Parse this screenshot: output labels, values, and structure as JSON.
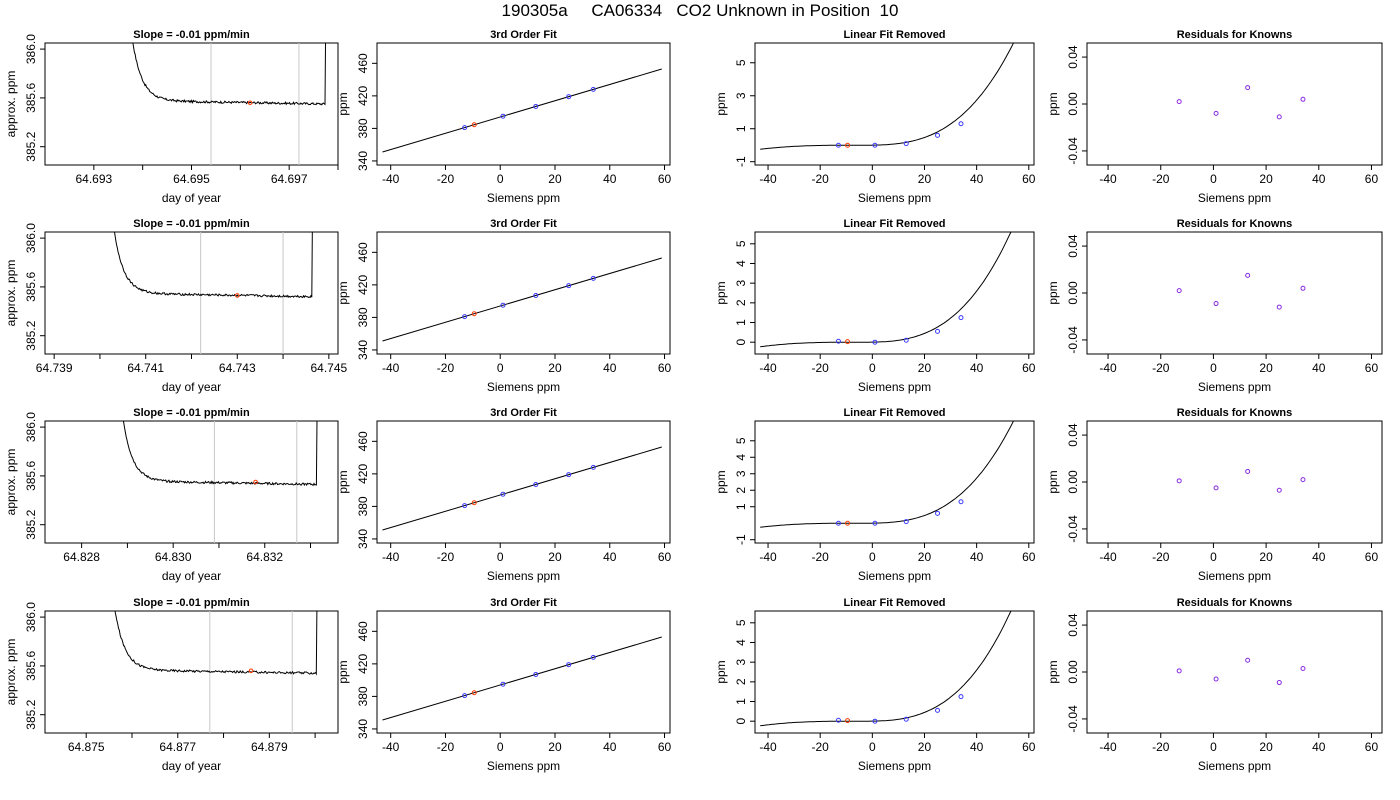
{
  "title": "190305a     CA06334   CO2 Unknown in Position  10",
  "colors": {
    "axis": "#000000",
    "series": "#000000",
    "marker_lines": "#c8c8c8",
    "unknown_point": "#ff3a00",
    "known_point": "#3b3bff",
    "residual_point": "#8a2be2"
  },
  "chart_data": [
    {
      "type": "line",
      "row": 1,
      "title": "Slope =  -0.01  ppm/min",
      "xlabel": "day of year",
      "ylabel": "approx. ppm",
      "xlim": [
        64.692,
        64.698
      ],
      "ylim": [
        385.05,
        386.05
      ],
      "xticks": [
        "64.693",
        "64.695",
        "64.697"
      ],
      "yticks": [
        "385.2",
        "385.6",
        "386.0"
      ],
      "minor_xticks": [
        64.694,
        64.696,
        64.698
      ],
      "vlines": [
        64.6954,
        64.6972
      ],
      "x_start": 64.6935,
      "x_end": 64.6978,
      "level": 385.58,
      "rise_start": 386.2,
      "spike_end": 386.2,
      "unknown_point": {
        "x": 64.6962,
        "y": 385.56
      }
    },
    {
      "type": "scatter",
      "row": 1,
      "title": "3rd Order Fit",
      "xlabel": "Siemens ppm",
      "ylabel": "ppm",
      "xlim": [
        -45,
        62
      ],
      "ylim": [
        335,
        485
      ],
      "xticks": [
        "-40",
        "-20",
        "0",
        "20",
        "40",
        "60"
      ],
      "yticks": [
        "340",
        "380",
        "420",
        "460"
      ],
      "curve": {
        "slope": 1,
        "intercept": 394,
        "x_range": [
          -43,
          59
        ]
      },
      "known_points": [
        {
          "x": -13,
          "y": 381
        },
        {
          "x": 1,
          "y": 395
        },
        {
          "x": 13,
          "y": 407
        },
        {
          "x": 25,
          "y": 419
        },
        {
          "x": 34,
          "y": 428
        }
      ],
      "unknown_point": {
        "x": -9.5,
        "y": 384.5
      }
    },
    {
      "type": "scatter",
      "row": 1,
      "title": "Linear Fit Removed",
      "xlabel": "Siemens ppm",
      "ylabel": "ppm",
      "xlim": [
        -45,
        62
      ],
      "ylim": [
        -1.2,
        6.2
      ],
      "xticks": [
        "-40",
        "-20",
        "0",
        "20",
        "40",
        "60"
      ],
      "yticks": [
        "-1",
        "1",
        "3",
        "5"
      ],
      "cubic": {
        "x0": -5,
        "k": 3e-05,
        "offset": 0.0,
        "x_range": [
          -43,
          59
        ]
      },
      "known_points": [
        {
          "x": -13,
          "y": 0.0
        },
        {
          "x": 1,
          "y": 0.0
        },
        {
          "x": 13,
          "y": 0.1
        },
        {
          "x": 25,
          "y": 0.6
        },
        {
          "x": 34,
          "y": 1.3
        }
      ],
      "unknown_point": {
        "x": -9.5,
        "y": 0.0
      }
    },
    {
      "type": "scatter",
      "row": 1,
      "title": "Residuals for Knowns",
      "xlabel": "Siemens ppm",
      "ylabel": "ppm",
      "xlim": [
        -48,
        64
      ],
      "ylim": [
        -0.052,
        0.052
      ],
      "xticks": [
        "-40",
        "-20",
        "0",
        "20",
        "40",
        "60"
      ],
      "yticks": [
        "-0.04",
        "0.00",
        "0.04"
      ],
      "residual_points": [
        {
          "x": -13,
          "y": 0.002
        },
        {
          "x": 1,
          "y": -0.008
        },
        {
          "x": 13,
          "y": 0.014
        },
        {
          "x": 25,
          "y": -0.011
        },
        {
          "x": 34,
          "y": 0.004
        }
      ]
    },
    {
      "type": "line",
      "row": 2,
      "title": "Slope =  -0.01  ppm/min",
      "xlabel": "day of year",
      "ylabel": "approx. ppm",
      "xlim": [
        64.7388,
        64.7452
      ],
      "ylim": [
        385.05,
        386.05
      ],
      "xticks": [
        "64.739",
        "64.741",
        "64.743",
        "64.745"
      ],
      "yticks": [
        "385.2",
        "385.6",
        "386.0"
      ],
      "minor_xticks": [
        64.74,
        64.742,
        64.744
      ],
      "vlines": [
        64.7422,
        64.744
      ],
      "x_start": 64.74,
      "x_end": 64.7447,
      "level": 385.55,
      "rise_start": 386.2,
      "spike_end": 386.2,
      "unknown_point": {
        "x": 64.743,
        "y": 385.53
      }
    },
    {
      "type": "scatter",
      "row": 2,
      "title": "3rd Order Fit",
      "xlabel": "Siemens ppm",
      "ylabel": "ppm",
      "xlim": [
        -45,
        62
      ],
      "ylim": [
        335,
        485
      ],
      "xticks": [
        "-40",
        "-20",
        "0",
        "20",
        "40",
        "60"
      ],
      "yticks": [
        "340",
        "380",
        "420",
        "460"
      ],
      "curve": {
        "slope": 1,
        "intercept": 394,
        "x_range": [
          -43,
          59
        ]
      },
      "known_points": [
        {
          "x": -13,
          "y": 381
        },
        {
          "x": 1,
          "y": 395
        },
        {
          "x": 13,
          "y": 407
        },
        {
          "x": 25,
          "y": 419
        },
        {
          "x": 34,
          "y": 428
        }
      ],
      "unknown_point": {
        "x": -9.5,
        "y": 384.5
      }
    },
    {
      "type": "scatter",
      "row": 2,
      "title": "Linear Fit Removed",
      "xlabel": "Siemens ppm",
      "ylabel": "ppm",
      "xlim": [
        -45,
        62
      ],
      "ylim": [
        -0.6,
        5.6
      ],
      "xticks": [
        "-40",
        "-20",
        "0",
        "20",
        "40",
        "60"
      ],
      "yticks": [
        "0",
        "1",
        "2",
        "3",
        "4",
        "5"
      ],
      "cubic": {
        "x0": -5,
        "k": 2.85e-05,
        "offset": 0.0,
        "x_range": [
          -43,
          59
        ]
      },
      "known_points": [
        {
          "x": -13,
          "y": 0.05
        },
        {
          "x": 1,
          "y": 0.0
        },
        {
          "x": 13,
          "y": 0.1
        },
        {
          "x": 25,
          "y": 0.55
        },
        {
          "x": 34,
          "y": 1.25
        }
      ],
      "unknown_point": {
        "x": -9.5,
        "y": 0.03
      }
    },
    {
      "type": "scatter",
      "row": 2,
      "title": "Residuals for Knowns",
      "xlabel": "Siemens ppm",
      "ylabel": "ppm",
      "xlim": [
        -48,
        64
      ],
      "ylim": [
        -0.052,
        0.052
      ],
      "xticks": [
        "-40",
        "-20",
        "0",
        "20",
        "40",
        "60"
      ],
      "yticks": [
        "-0.04",
        "0.00",
        "0.04"
      ],
      "residual_points": [
        {
          "x": -13,
          "y": 0.002
        },
        {
          "x": 1,
          "y": -0.009
        },
        {
          "x": 13,
          "y": 0.015
        },
        {
          "x": 25,
          "y": -0.012
        },
        {
          "x": 34,
          "y": 0.004
        }
      ]
    },
    {
      "type": "line",
      "row": 3,
      "title": "Slope =  -0.01  ppm/min",
      "xlabel": "day of year",
      "ylabel": "approx. ppm",
      "xlim": [
        64.8272,
        64.8336
      ],
      "ylim": [
        385.05,
        386.05
      ],
      "xticks": [
        "64.828",
        "64.830",
        "64.832"
      ],
      "yticks": [
        "385.2",
        "385.6",
        "386.0"
      ],
      "minor_xticks": [
        64.829,
        64.831,
        64.833
      ],
      "vlines": [
        64.8309,
        64.8327
      ],
      "x_start": 64.8286,
      "x_end": 64.8332,
      "level": 385.56,
      "rise_start": 386.2,
      "spike_end": 386.2,
      "unknown_point": {
        "x": 64.8318,
        "y": 385.55
      }
    },
    {
      "type": "scatter",
      "row": 3,
      "title": "3rd Order Fit",
      "xlabel": "Siemens ppm",
      "ylabel": "ppm",
      "xlim": [
        -45,
        62
      ],
      "ylim": [
        335,
        485
      ],
      "xticks": [
        "-40",
        "-20",
        "0",
        "20",
        "40",
        "60"
      ],
      "yticks": [
        "340",
        "380",
        "420",
        "460"
      ],
      "curve": {
        "slope": 1,
        "intercept": 394,
        "x_range": [
          -43,
          59
        ]
      },
      "known_points": [
        {
          "x": -13,
          "y": 381
        },
        {
          "x": 1,
          "y": 395
        },
        {
          "x": 13,
          "y": 407
        },
        {
          "x": 25,
          "y": 419
        },
        {
          "x": 34,
          "y": 428
        }
      ],
      "unknown_point": {
        "x": -9.5,
        "y": 384.5
      }
    },
    {
      "type": "scatter",
      "row": 3,
      "title": "Linear Fit Removed",
      "xlabel": "Siemens ppm",
      "ylabel": "ppm",
      "xlim": [
        -45,
        62
      ],
      "ylim": [
        -1.2,
        6.2
      ],
      "xticks": [
        "-40",
        "-20",
        "0",
        "20",
        "40",
        "60"
      ],
      "yticks": [
        "-1",
        "1",
        "2",
        "3",
        "4",
        "5"
      ],
      "cubic": {
        "x0": -5,
        "k": 3e-05,
        "offset": 0.0,
        "x_range": [
          -43,
          59
        ]
      },
      "known_points": [
        {
          "x": -13,
          "y": 0.0
        },
        {
          "x": 1,
          "y": 0.0
        },
        {
          "x": 13,
          "y": 0.1
        },
        {
          "x": 25,
          "y": 0.6
        },
        {
          "x": 34,
          "y": 1.3
        }
      ],
      "unknown_point": {
        "x": -9.5,
        "y": 0.0
      }
    },
    {
      "type": "scatter",
      "row": 3,
      "title": "Residuals for Knowns",
      "xlabel": "Siemens ppm",
      "ylabel": "ppm",
      "xlim": [
        -48,
        64
      ],
      "ylim": [
        -0.052,
        0.052
      ],
      "xticks": [
        "-40",
        "-20",
        "0",
        "20",
        "40",
        "60"
      ],
      "yticks": [
        "-0.04",
        "0.00",
        "0.04"
      ],
      "residual_points": [
        {
          "x": -13,
          "y": 0.001
        },
        {
          "x": 1,
          "y": -0.005
        },
        {
          "x": 13,
          "y": 0.009
        },
        {
          "x": 25,
          "y": -0.007
        },
        {
          "x": 34,
          "y": 0.002
        }
      ]
    },
    {
      "type": "line",
      "row": 4,
      "title": "Slope =  -0.01  ppm/min",
      "xlabel": "day of year",
      "ylabel": "approx. ppm",
      "xlim": [
        64.8741,
        64.8805
      ],
      "ylim": [
        385.05,
        386.05
      ],
      "xticks": [
        "64.875",
        "64.877",
        "64.879"
      ],
      "yticks": [
        "385.2",
        "385.6",
        "386.0"
      ],
      "minor_xticks": [
        64.876,
        64.878,
        64.88
      ],
      "vlines": [
        64.8777,
        64.8795
      ],
      "x_start": 64.8753,
      "x_end": 64.8801,
      "level": 385.57,
      "rise_start": 386.2,
      "spike_end": 386.2,
      "unknown_point": {
        "x": 64.8786,
        "y": 385.56
      }
    },
    {
      "type": "scatter",
      "row": 4,
      "title": "3rd Order Fit",
      "xlabel": "Siemens ppm",
      "ylabel": "ppm",
      "xlim": [
        -45,
        62
      ],
      "ylim": [
        335,
        485
      ],
      "xticks": [
        "-40",
        "-20",
        "0",
        "20",
        "40",
        "60"
      ],
      "yticks": [
        "340",
        "380",
        "420",
        "460"
      ],
      "curve": {
        "slope": 1,
        "intercept": 394,
        "x_range": [
          -43,
          59
        ]
      },
      "known_points": [
        {
          "x": -13,
          "y": 381
        },
        {
          "x": 1,
          "y": 395
        },
        {
          "x": 13,
          "y": 407
        },
        {
          "x": 25,
          "y": 419
        },
        {
          "x": 34,
          "y": 428
        }
      ],
      "unknown_point": {
        "x": -9.5,
        "y": 384.5
      }
    },
    {
      "type": "scatter",
      "row": 4,
      "title": "Linear Fit Removed",
      "xlabel": "Siemens ppm",
      "ylabel": "ppm",
      "xlim": [
        -45,
        62
      ],
      "ylim": [
        -0.6,
        5.6
      ],
      "xticks": [
        "-40",
        "-20",
        "0",
        "20",
        "40",
        "60"
      ],
      "yticks": [
        "0",
        "1",
        "2",
        "3",
        "4",
        "5"
      ],
      "cubic": {
        "x0": -5,
        "k": 2.85e-05,
        "offset": 0.0,
        "x_range": [
          -43,
          59
        ]
      },
      "known_points": [
        {
          "x": -13,
          "y": 0.05
        },
        {
          "x": 1,
          "y": 0.0
        },
        {
          "x": 13,
          "y": 0.1
        },
        {
          "x": 25,
          "y": 0.55
        },
        {
          "x": 34,
          "y": 1.25
        }
      ],
      "unknown_point": {
        "x": -9.5,
        "y": 0.03
      }
    },
    {
      "type": "scatter",
      "row": 4,
      "title": "Residuals for Knowns",
      "xlabel": "Siemens ppm",
      "ylabel": "ppm",
      "xlim": [
        -48,
        64
      ],
      "ylim": [
        -0.052,
        0.052
      ],
      "xticks": [
        "-40",
        "-20",
        "0",
        "20",
        "40",
        "60"
      ],
      "yticks": [
        "-0.04",
        "0.00",
        "0.04"
      ],
      "residual_points": [
        {
          "x": -13,
          "y": 0.001
        },
        {
          "x": 1,
          "y": -0.006
        },
        {
          "x": 13,
          "y": 0.01
        },
        {
          "x": 25,
          "y": -0.009
        },
        {
          "x": 34,
          "y": 0.003
        }
      ]
    }
  ]
}
